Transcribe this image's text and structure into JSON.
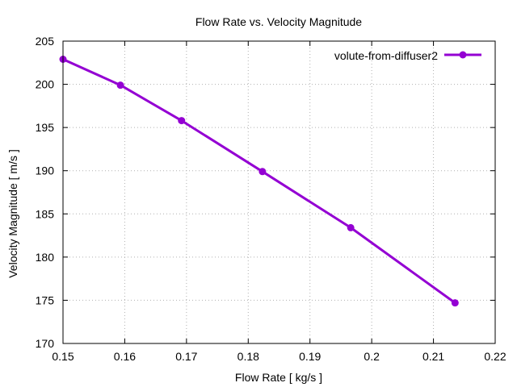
{
  "chart_data": {
    "type": "line",
    "title": "Flow Rate vs. Velocity Magnitude",
    "xlabel": "Flow Rate [ kg/s ]",
    "ylabel": "Velocity Magnitude [ m/s ]",
    "xlim": [
      0.15,
      0.22
    ],
    "ylim": [
      170,
      205
    ],
    "xticks": [
      0.15,
      0.16,
      0.17,
      0.18,
      0.19,
      0.2,
      0.21,
      0.22
    ],
    "xtick_labels": [
      "0.15",
      "0.16",
      "0.17",
      "0.18",
      "0.19",
      "0.2",
      "0.21",
      "0.22"
    ],
    "yticks": [
      170,
      175,
      180,
      185,
      190,
      195,
      200,
      205
    ],
    "ytick_labels": [
      "170",
      "175",
      "180",
      "185",
      "190",
      "195",
      "200",
      "205"
    ],
    "grid": true,
    "legend_position": "top-right",
    "series": [
      {
        "name": "volute-from-diffuser2",
        "color": "#9400d3",
        "marker": "circle",
        "x": [
          0.15,
          0.1593,
          0.1692,
          0.1823,
          0.1966,
          0.2135
        ],
        "y": [
          202.9,
          199.9,
          195.8,
          189.9,
          183.4,
          174.7
        ]
      }
    ]
  }
}
